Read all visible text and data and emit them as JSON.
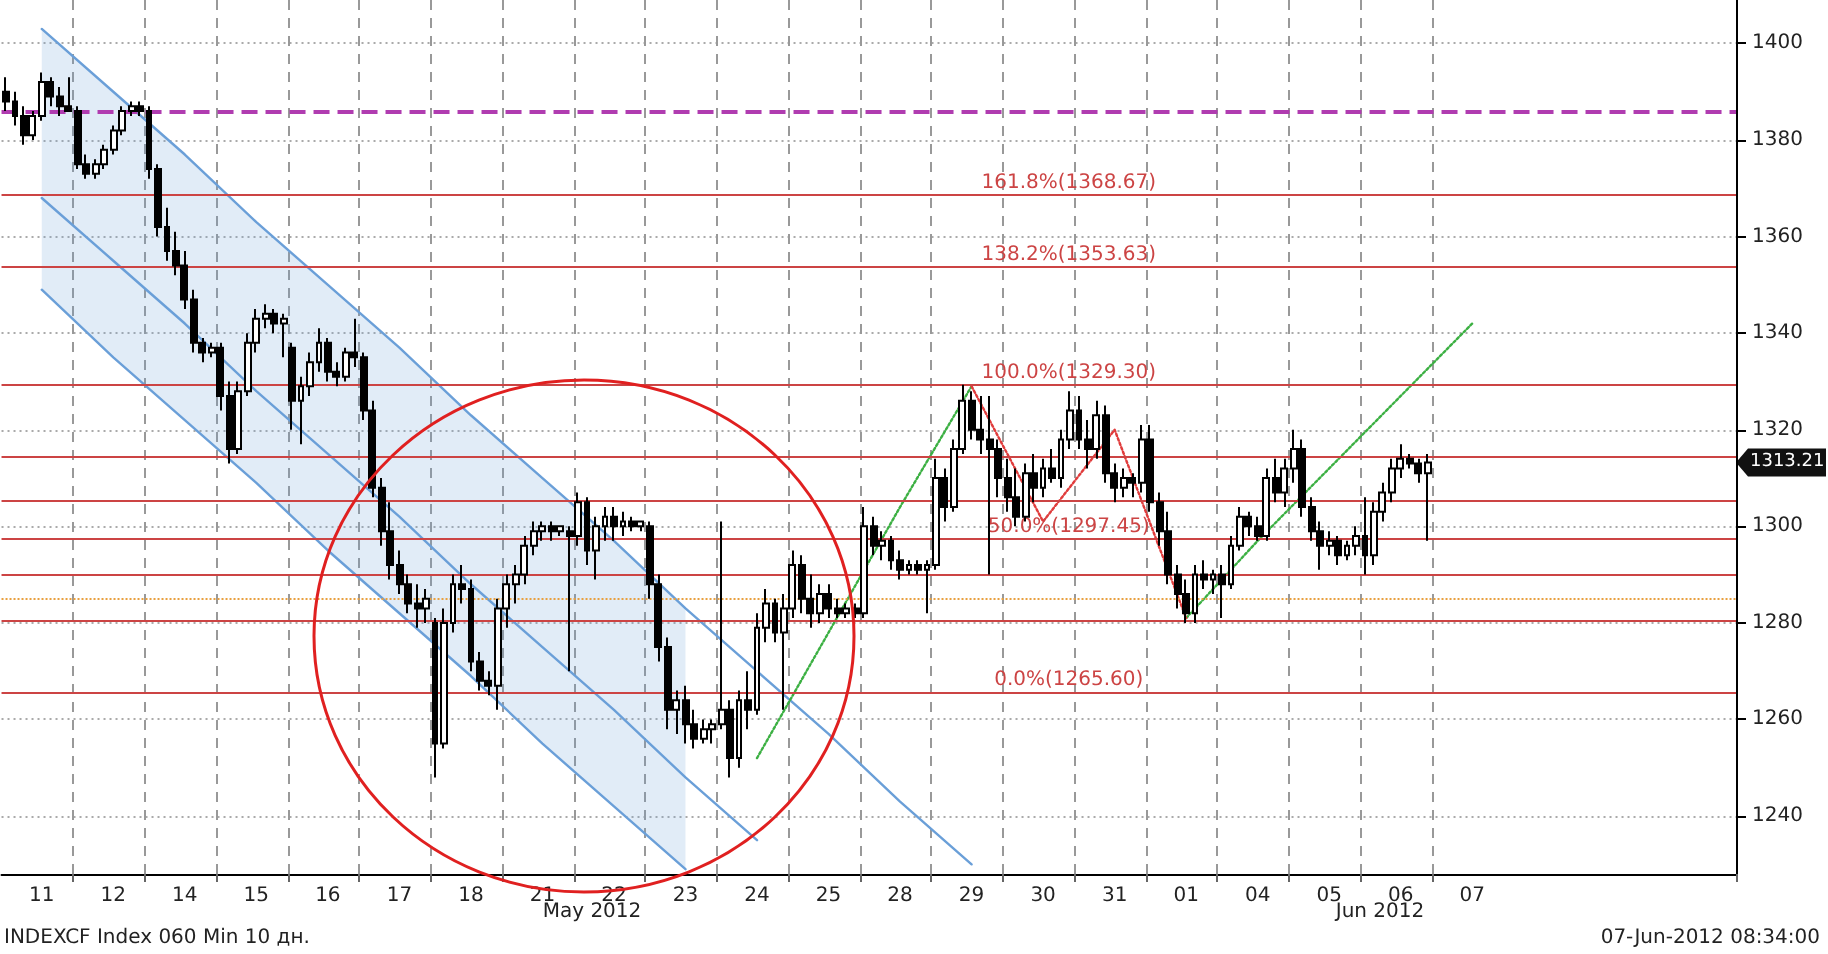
{
  "chart_data": {
    "type": "candlestick",
    "color": "#000000",
    "ylim": [
      1228,
      1409
    ],
    "yticks": [
      1240,
      1260,
      1280,
      1300,
      1320,
      1340,
      1360,
      1380,
      1400
    ],
    "grid": true,
    "categories": [
      null,
      null,
      null,
      null,
      "11",
      null,
      null,
      null,
      null,
      null,
      null,
      null,
      "12",
      null,
      null,
      null,
      null,
      null,
      null,
      null,
      "14",
      null,
      null,
      null,
      null,
      null,
      null,
      null,
      "15",
      null,
      null,
      null,
      null,
      null,
      null,
      null,
      "16",
      null,
      null,
      null,
      null,
      null,
      null,
      null,
      "17",
      null,
      null,
      null,
      null,
      null,
      null,
      null,
      "18",
      null,
      null,
      null,
      null,
      null,
      null,
      null,
      "21",
      null,
      null,
      null,
      null,
      null,
      null,
      null,
      "22",
      null,
      null,
      null,
      null,
      null,
      null,
      null,
      "23",
      null,
      null,
      null,
      null,
      null,
      null,
      null,
      "24",
      null,
      null,
      null,
      null,
      null,
      null,
      null,
      "25",
      null,
      null,
      null,
      null,
      null,
      null,
      null,
      "28",
      null,
      null,
      null,
      null,
      null,
      null,
      null,
      "29",
      null,
      null,
      null,
      null,
      null,
      null,
      null,
      "30",
      null,
      null,
      null,
      null,
      null,
      null,
      null,
      "31",
      null,
      null,
      null,
      null,
      null,
      null,
      null,
      "01",
      null,
      null,
      null,
      null,
      null,
      null,
      null,
      "04",
      null,
      null,
      null,
      null,
      null,
      null,
      null,
      "05",
      null,
      null,
      null,
      null,
      null,
      null,
      null,
      "06",
      null,
      null,
      null,
      null,
      null,
      null,
      null,
      "07",
      null,
      null,
      null,
      null,
      null,
      null,
      null,
      null,
      null,
      null,
      null,
      null,
      null,
      null,
      null,
      null,
      null,
      null,
      null,
      null,
      null,
      null,
      null,
      null,
      null,
      null,
      null,
      null,
      null
    ],
    "ohlc": [
      [
        1390,
        1393,
        1386,
        1388
      ],
      [
        1388,
        1390,
        1383,
        1385
      ],
      [
        1385,
        1387,
        1379,
        1381
      ],
      [
        1381,
        1386,
        1380,
        1385
      ],
      [
        1385,
        1394,
        1384,
        1392
      ],
      [
        1392,
        1393,
        1387,
        1389
      ],
      [
        1389,
        1391,
        1385,
        1387
      ],
      [
        1387,
        1393,
        1386,
        1386
      ],
      [
        1386,
        1387,
        1374,
        1375
      ],
      [
        1375,
        1377,
        1372,
        1373
      ],
      [
        1373,
        1376,
        1372,
        1375
      ],
      [
        1375,
        1379,
        1374,
        1378
      ],
      [
        1378,
        1383,
        1377,
        1382
      ],
      [
        1382,
        1387,
        1381,
        1386
      ],
      [
        1386,
        1388,
        1385,
        1387
      ],
      [
        1387,
        1388,
        1385,
        1386
      ],
      [
        1386,
        1387,
        1372,
        1374
      ],
      [
        1374,
        1375,
        1360,
        1362
      ],
      [
        1362,
        1366,
        1355,
        1357
      ],
      [
        1357,
        1361,
        1352,
        1354
      ],
      [
        1354,
        1357,
        1345,
        1347
      ],
      [
        1347,
        1349,
        1336,
        1338
      ],
      [
        1338,
        1339,
        1334,
        1336
      ],
      [
        1336,
        1338,
        1335,
        1337
      ],
      [
        1337,
        1338,
        1324,
        1327
      ],
      [
        1327,
        1330,
        1313,
        1316
      ],
      [
        1316,
        1330,
        1315,
        1328
      ],
      [
        1328,
        1340,
        1327,
        1338
      ],
      [
        1338,
        1345,
        1336,
        1343
      ],
      [
        1343,
        1346,
        1341,
        1344
      ],
      [
        1344,
        1345,
        1340,
        1342
      ],
      [
        1342,
        1344,
        1335,
        1343
      ],
      [
        1337,
        1338,
        1320,
        1326
      ],
      [
        1326,
        1331,
        1317,
        1329
      ],
      [
        1329,
        1336,
        1327,
        1334
      ],
      [
        1334,
        1341,
        1332,
        1338
      ],
      [
        1338,
        1339,
        1330,
        1332
      ],
      [
        1332,
        1334,
        1329,
        1331
      ],
      [
        1331,
        1337,
        1330,
        1336
      ],
      [
        1336,
        1343,
        1333,
        1335
      ],
      [
        1335,
        1336,
        1322,
        1324
      ],
      [
        1324,
        1326,
        1306,
        1308
      ],
      [
        1308,
        1310,
        1296,
        1299
      ],
      [
        1299,
        1305,
        1289,
        1292
      ],
      [
        1292,
        1295,
        1286,
        1288
      ],
      [
        1288,
        1290,
        1282,
        1284
      ],
      [
        1284,
        1288,
        1279,
        1283
      ],
      [
        1283,
        1287,
        1280,
        1285
      ],
      [
        1280,
        1281,
        1248,
        1255
      ],
      [
        1255,
        1283,
        1254,
        1280
      ],
      [
        1280,
        1290,
        1278,
        1288
      ],
      [
        1288,
        1292,
        1284,
        1287
      ],
      [
        1287,
        1289,
        1270,
        1272
      ],
      [
        1272,
        1274,
        1266,
        1268
      ],
      [
        1268,
        1270,
        1265,
        1267
      ],
      [
        1267,
        1285,
        1262,
        1283
      ],
      [
        1283,
        1290,
        1279,
        1288
      ],
      [
        1288,
        1292,
        1284,
        1290
      ],
      [
        1290,
        1298,
        1288,
        1296
      ],
      [
        1296,
        1301,
        1294,
        1299
      ],
      [
        1299,
        1301,
        1297,
        1300
      ],
      [
        1300,
        1301,
        1297,
        1299
      ],
      [
        1299,
        1300,
        1298,
        1300
      ],
      [
        1299,
        1300,
        1270,
        1298
      ],
      [
        1298,
        1307,
        1296,
        1305
      ],
      [
        1305,
        1306,
        1292,
        1295
      ],
      [
        1295,
        1302,
        1289,
        1300
      ],
      [
        1300,
        1304,
        1297,
        1302
      ],
      [
        1302,
        1304,
        1297,
        1300
      ],
      [
        1300,
        1303,
        1298,
        1301
      ],
      [
        1301,
        1302,
        1299,
        1300
      ],
      [
        1300,
        1301,
        1299,
        1301
      ],
      [
        1300,
        1301,
        1285,
        1288
      ],
      [
        1288,
        1290,
        1272,
        1275
      ],
      [
        1275,
        1277,
        1258,
        1262
      ],
      [
        1262,
        1266,
        1257,
        1264
      ],
      [
        1264,
        1267,
        1255,
        1259
      ],
      [
        1259,
        1262,
        1254,
        1256
      ],
      [
        1256,
        1260,
        1255,
        1258
      ],
      [
        1258,
        1260,
        1255,
        1259
      ],
      [
        1259,
        1301,
        1258,
        1262
      ],
      [
        1262,
        1264,
        1248,
        1252
      ],
      [
        1252,
        1266,
        1250,
        1264
      ],
      [
        1264,
        1270,
        1258,
        1262
      ],
      [
        1262,
        1282,
        1261,
        1279
      ],
      [
        1279,
        1287,
        1276,
        1284
      ],
      [
        1284,
        1285,
        1276,
        1278
      ],
      [
        1278,
        1286,
        1262,
        1283
      ],
      [
        1283,
        1295,
        1281,
        1292
      ],
      [
        1292,
        1294,
        1282,
        1285
      ],
      [
        1285,
        1290,
        1279,
        1282
      ],
      [
        1282,
        1288,
        1280,
        1286
      ],
      [
        1286,
        1288,
        1281,
        1283
      ],
      [
        1283,
        1285,
        1281,
        1282
      ],
      [
        1282,
        1284,
        1281,
        1283
      ],
      [
        1283,
        1284,
        1281,
        1282
      ],
      [
        1282,
        1304,
        1281,
        1300
      ],
      [
        1300,
        1302,
        1294,
        1296
      ],
      [
        1296,
        1299,
        1293,
        1297
      ],
      [
        1297,
        1298,
        1291,
        1293
      ],
      [
        1293,
        1295,
        1289,
        1291
      ],
      [
        1291,
        1293,
        1290,
        1292
      ],
      [
        1292,
        1293,
        1290,
        1291
      ],
      [
        1291,
        1293,
        1282,
        1292
      ],
      [
        1292,
        1314,
        1291,
        1310
      ],
      [
        1310,
        1312,
        1301,
        1304
      ],
      [
        1304,
        1318,
        1303,
        1316
      ],
      [
        1316,
        1329.3,
        1315,
        1326
      ],
      [
        1326,
        1328,
        1318,
        1320
      ],
      [
        1320,
        1327,
        1315,
        1318
      ],
      [
        1318,
        1327,
        1290,
        1316
      ],
      [
        1316,
        1318,
        1306,
        1310
      ],
      [
        1310,
        1314,
        1303,
        1306
      ],
      [
        1306,
        1312,
        1300,
        1302
      ],
      [
        1302,
        1313,
        1301,
        1311
      ],
      [
        1311,
        1315,
        1305,
        1308
      ],
      [
        1308,
        1314,
        1306,
        1312
      ],
      [
        1312,
        1316,
        1309,
        1310
      ],
      [
        1310,
        1320,
        1308,
        1318
      ],
      [
        1318,
        1328,
        1316,
        1324
      ],
      [
        1324,
        1327,
        1316,
        1318
      ],
      [
        1318,
        1322,
        1312,
        1316
      ],
      [
        1316,
        1326,
        1314,
        1323
      ],
      [
        1323,
        1325,
        1309,
        1311
      ],
      [
        1311,
        1313,
        1305,
        1308
      ],
      [
        1308,
        1312,
        1306,
        1310
      ],
      [
        1310,
        1311,
        1306,
        1309
      ],
      [
        1309,
        1321,
        1307,
        1318
      ],
      [
        1318,
        1321,
        1303,
        1305
      ],
      [
        1305,
        1307,
        1296,
        1299
      ],
      [
        1299,
        1303,
        1288,
        1290
      ],
      [
        1290,
        1292,
        1283,
        1286
      ],
      [
        1286,
        1289,
        1280,
        1282
      ],
      [
        1282,
        1292,
        1280,
        1290
      ],
      [
        1290,
        1293,
        1287,
        1289
      ],
      [
        1289,
        1291,
        1286,
        1290
      ],
      [
        1290,
        1292,
        1281,
        1288
      ],
      [
        1288,
        1298,
        1287,
        1296
      ],
      [
        1296,
        1304,
        1295,
        1302
      ],
      [
        1302,
        1303,
        1298,
        1300
      ],
      [
        1300,
        1302,
        1297,
        1298
      ],
      [
        1298,
        1312,
        1297,
        1310
      ],
      [
        1310,
        1314,
        1305,
        1307
      ],
      [
        1307,
        1314,
        1304,
        1312
      ],
      [
        1312,
        1320,
        1309,
        1316
      ],
      [
        1316,
        1318,
        1302,
        1304
      ],
      [
        1304,
        1306,
        1297,
        1299
      ],
      [
        1299,
        1301,
        1291,
        1296
      ],
      [
        1296,
        1299,
        1294,
        1297
      ],
      [
        1297,
        1298,
        1292,
        1294
      ],
      [
        1294,
        1297,
        1293,
        1296
      ],
      [
        1296,
        1300,
        1294,
        1298
      ],
      [
        1298,
        1306,
        1290,
        1294
      ],
      [
        1294,
        1305,
        1292,
        1303
      ],
      [
        1303,
        1309,
        1301,
        1307
      ],
      [
        1307,
        1314,
        1305,
        1312
      ],
      [
        1312,
        1317,
        1310,
        1314
      ],
      [
        1314,
        1315,
        1312,
        1313
      ],
      [
        1313,
        1314,
        1309,
        1311
      ],
      [
        1311,
        1315,
        1297,
        1313.21
      ],
      null,
      null,
      null,
      null,
      null,
      null,
      null,
      null,
      null,
      null,
      null,
      null,
      null,
      null,
      null,
      null,
      null,
      null,
      null,
      null,
      null,
      null,
      null,
      null,
      null,
      null,
      null,
      null,
      null,
      null,
      null,
      null,
      null,
      null
    ],
    "series": [
      {
        "type": "line",
        "color": "#6a9fd8",
        "x": [
          "11",
          "12",
          "14",
          "15",
          "16",
          "17",
          "18",
          "21",
          "22",
          "23",
          "24",
          "25",
          "28",
          "29"
        ],
        "values": [
          1403,
          1390,
          1377,
          1363,
          1350,
          1337,
          1323,
          1310,
          1297,
          1283,
          1270,
          1257,
          1243,
          1230
        ]
      },
      {
        "type": "line",
        "color": "#6a9fd8",
        "x": [
          "11",
          "12",
          "14",
          "15",
          "16",
          "17",
          "18",
          "21",
          "22",
          "23",
          "24"
        ],
        "values": [
          1368,
          1355,
          1342,
          1328,
          1315,
          1302,
          1288,
          1275,
          1262,
          1248,
          1235
        ],
        "lower": [
          1349,
          1335,
          1322,
          1309,
          1295,
          1282,
          1269,
          1255,
          1242,
          1229,
          null
        ],
        "upper": [
          1403,
          1390,
          1377,
          1363,
          1350,
          1337,
          1323,
          1310,
          1297,
          1283,
          null
        ]
      },
      {
        "type": "line",
        "color": "#6a9fd8",
        "x": [
          "11",
          "12",
          "14",
          "15",
          "16",
          "17",
          "18",
          "21",
          "22",
          "23"
        ],
        "values": [
          1349,
          1335,
          1322,
          1309,
          1295,
          1282,
          1269,
          1255,
          1242,
          1229
        ]
      },
      {
        "type": "line",
        "color": "#3cb043",
        "line_style": "dotted",
        "x": [
          "24",
          "25",
          "28",
          "29"
        ],
        "values": [
          1252,
          1278,
          1304,
          1329
        ]
      },
      {
        "type": "line",
        "color": "#3cb043",
        "line_style": "dotted",
        "x": [
          "01",
          "04",
          "05",
          "06",
          "07"
        ],
        "values": [
          1281,
          1297,
          1312,
          1327,
          1342
        ]
      },
      {
        "type": "line",
        "color": "#e03c3c",
        "line_style": "dotted",
        "x": [
          "29",
          "30",
          "31",
          "01"
        ],
        "values": [
          1329,
          1301,
          1320,
          1281
        ]
      }
    ],
    "ref_lines": [
      {
        "axis": "y",
        "value": 1386,
        "color": "#b03cb0",
        "line_style": "dashed"
      },
      {
        "axis": "y",
        "value": 1285,
        "color": "#e8a040",
        "line_style": "dotted"
      },
      {
        "axis": "y",
        "value": 1368.67,
        "label": "161.8%(1368.67)",
        "color": "#cc4444"
      },
      {
        "axis": "y",
        "value": 1353.63,
        "label": "138.2%(1353.63)",
        "color": "#cc4444"
      },
      {
        "axis": "y",
        "value": 1329.3,
        "label": "100.0%(1329.30)",
        "color": "#cc4444"
      },
      {
        "axis": "y",
        "value": 1314.4,
        "color": "#cc4444"
      },
      {
        "axis": "y",
        "value": 1305.2,
        "color": "#cc4444"
      },
      {
        "axis": "y",
        "value": 1297.45,
        "label": "50.0%(1297.45)",
        "color": "#cc4444"
      },
      {
        "axis": "y",
        "value": 1290.1,
        "color": "#cc4444"
      },
      {
        "axis": "y",
        "value": 1280.5,
        "color": "#cc4444"
      },
      {
        "axis": "y",
        "value": 1265.6,
        "label": "0.0%(1265.60)",
        "color": "#cc4444"
      }
    ],
    "annotations": [
      "INDEXCF Index 060 Min 10 дн.",
      "07-Jun-2012 08:34:00",
      "May 2012",
      "Jun 2012",
      "1313.21"
    ]
  }
}
